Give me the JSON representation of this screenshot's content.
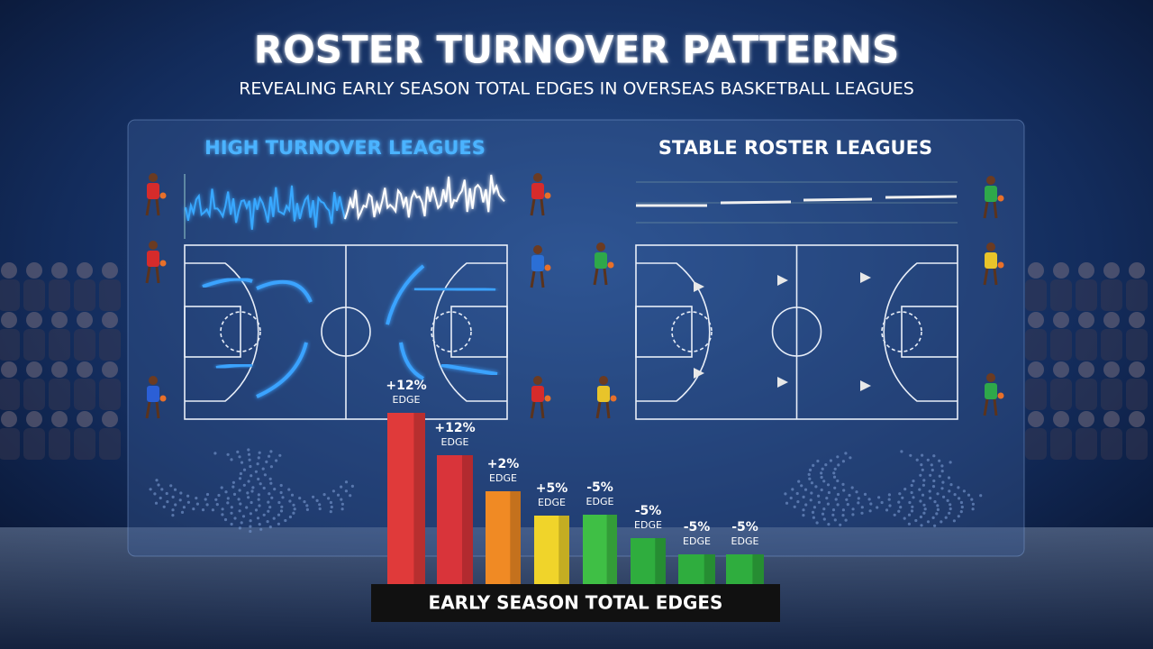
{
  "header": {
    "title": "ROSTER TURNOVER PATTERNS",
    "subtitle": "REVEALING EARLY SEASON TOTAL EDGES IN OVERSEAS BASKETBALL LEAGUES"
  },
  "panels": {
    "left_title": "HIGH TURNOVER LEAGUES",
    "right_title": "STABLE ROSTER LEAGUES"
  },
  "bars": [
    {
      "label": "+12%",
      "sub": "EDGE"
    },
    {
      "label": "+12%",
      "sub": "EDGE"
    },
    {
      "label": "+2%",
      "sub": "EDGE"
    },
    {
      "label": "+5%",
      "sub": "EDGE"
    },
    {
      "label": "-5%",
      "sub": "EDGE"
    },
    {
      "label": "-5%",
      "sub": "EDGE"
    },
    {
      "label": "-5%",
      "sub": "EDGE"
    },
    {
      "label": "-5%",
      "sub": "EDGE"
    }
  ],
  "footer": {
    "label": "EARLY SEASON TOTAL EDGES"
  }
}
